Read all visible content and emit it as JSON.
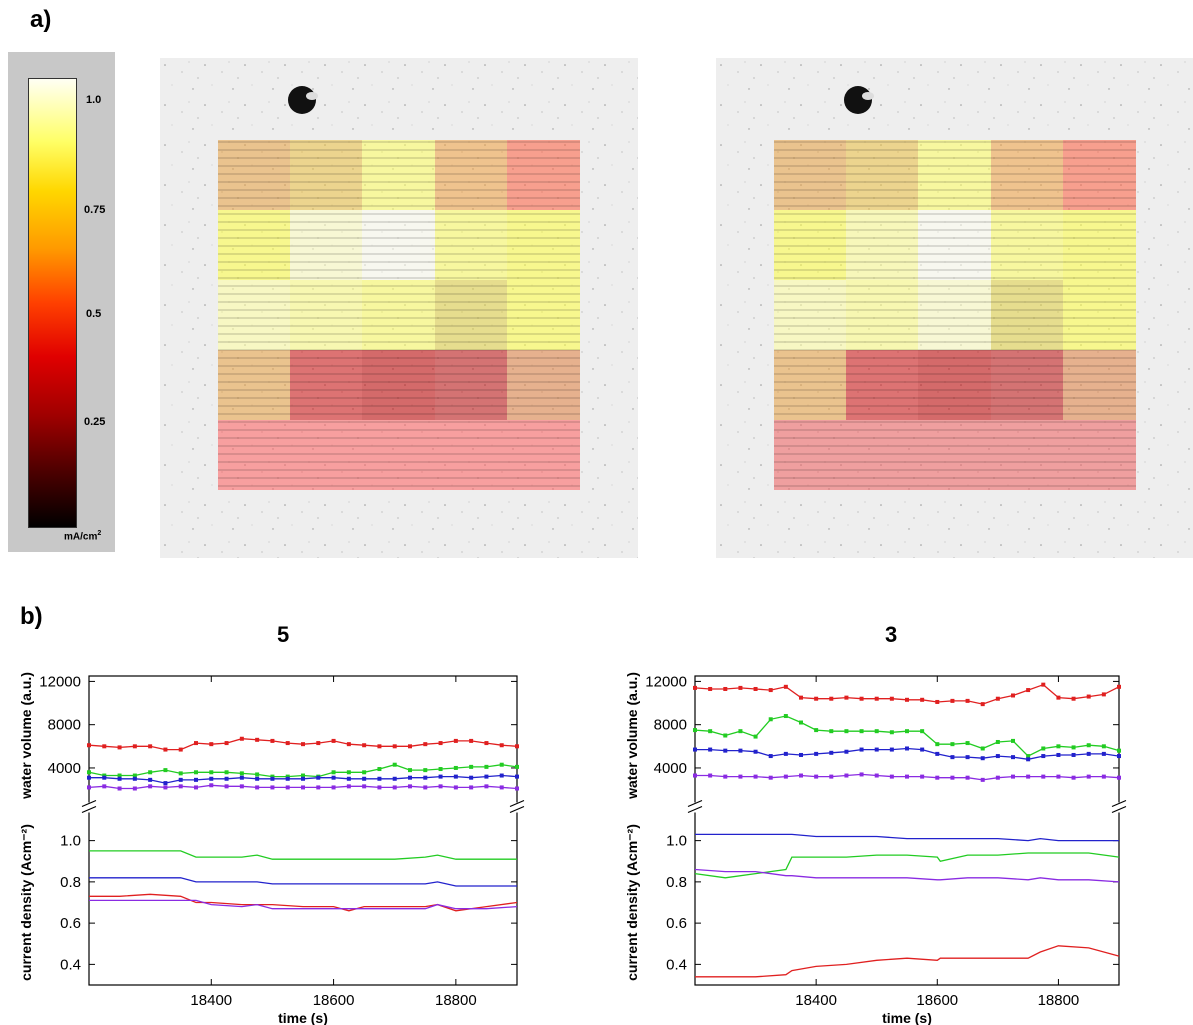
{
  "labels": {
    "a": "a)",
    "b": "b)"
  },
  "colorbar": {
    "ticks": [
      "1.0",
      "0.75",
      "0.5",
      "0.25"
    ],
    "unit": "mA/cm",
    "unit_sup": "2"
  },
  "chart_data": [
    {
      "type": "line",
      "title": "5",
      "xlabel": "time (s)",
      "xlim": [
        18200,
        18900
      ],
      "xticks": [
        "18400",
        "18600",
        "18800"
      ],
      "top_panel": {
        "ylabel": "water volume (a.u.)",
        "ylim": [
          1500,
          12500
        ],
        "yticks": [
          "4000",
          "8000",
          "12000"
        ],
        "x": [
          18200,
          18225,
          18250,
          18275,
          18300,
          18325,
          18350,
          18375,
          18400,
          18425,
          18450,
          18475,
          18500,
          18525,
          18550,
          18575,
          18600,
          18625,
          18650,
          18675,
          18700,
          18725,
          18750,
          18775,
          18800,
          18825,
          18850,
          18875,
          18900
        ],
        "series": [
          {
            "color": "#e02020",
            "values": [
              6100,
              6000,
              5900,
              6000,
              6000,
              5700,
              5700,
              6300,
              6200,
              6300,
              6700,
              6600,
              6500,
              6300,
              6200,
              6300,
              6500,
              6200,
              6100,
              6000,
              6000,
              6000,
              6200,
              6300,
              6500,
              6500,
              6300,
              6100,
              6000
            ]
          },
          {
            "color": "#22cc22",
            "values": [
              3600,
              3300,
              3300,
              3300,
              3600,
              3800,
              3500,
              3600,
              3600,
              3600,
              3500,
              3400,
              3200,
              3200,
              3300,
              3200,
              3600,
              3600,
              3600,
              3900,
              4300,
              3800,
              3800,
              3900,
              4000,
              4100,
              4100,
              4300,
              4100
            ]
          },
          {
            "color": "#2222cc",
            "values": [
              3100,
              3100,
              3000,
              3000,
              2900,
              2600,
              2900,
              2900,
              3000,
              3000,
              3100,
              3000,
              3000,
              3000,
              3000,
              3100,
              3100,
              3000,
              3000,
              3000,
              3000,
              3100,
              3100,
              3200,
              3200,
              3100,
              3200,
              3300,
              3200
            ]
          },
          {
            "color": "#8a2be2",
            "values": [
              2200,
              2300,
              2100,
              2100,
              2300,
              2200,
              2300,
              2200,
              2400,
              2300,
              2300,
              2200,
              2200,
              2200,
              2200,
              2200,
              2200,
              2300,
              2300,
              2200,
              2200,
              2300,
              2200,
              2300,
              2200,
              2200,
              2300,
              2200,
              2100
            ]
          }
        ]
      },
      "bottom_panel": {
        "ylabel": "current density (Acm⁻²)",
        "ylim": [
          0.3,
          1.1
        ],
        "yticks": [
          "0.4",
          "0.6",
          "0.8",
          "1.0"
        ],
        "x": [
          18200,
          18250,
          18300,
          18350,
          18375,
          18400,
          18450,
          18475,
          18500,
          18550,
          18600,
          18625,
          18650,
          18700,
          18750,
          18770,
          18800,
          18850,
          18900
        ],
        "series": [
          {
            "color": "#22cc22",
            "values": [
              0.95,
              0.95,
              0.95,
              0.95,
              0.92,
              0.92,
              0.92,
              0.93,
              0.91,
              0.91,
              0.91,
              0.91,
              0.91,
              0.91,
              0.92,
              0.93,
              0.91,
              0.91,
              0.91
            ]
          },
          {
            "color": "#2222cc",
            "values": [
              0.82,
              0.82,
              0.82,
              0.82,
              0.8,
              0.8,
              0.8,
              0.8,
              0.79,
              0.79,
              0.79,
              0.79,
              0.79,
              0.79,
              0.79,
              0.8,
              0.78,
              0.78,
              0.78
            ]
          },
          {
            "color": "#e02020",
            "values": [
              0.73,
              0.73,
              0.74,
              0.73,
              0.7,
              0.7,
              0.69,
              0.69,
              0.69,
              0.68,
              0.68,
              0.66,
              0.68,
              0.68,
              0.68,
              0.69,
              0.66,
              0.68,
              0.7
            ]
          },
          {
            "color": "#8a2be2",
            "values": [
              0.71,
              0.71,
              0.71,
              0.71,
              0.71,
              0.69,
              0.68,
              0.69,
              0.67,
              0.67,
              0.67,
              0.67,
              0.67,
              0.67,
              0.67,
              0.69,
              0.67,
              0.67,
              0.68
            ]
          }
        ]
      }
    },
    {
      "type": "line",
      "title": "3",
      "xlabel": "time (s)",
      "xlim": [
        18200,
        18900
      ],
      "xticks": [
        "18400",
        "18600",
        "18800"
      ],
      "top_panel": {
        "ylabel": "water volume (a.u.)",
        "ylim": [
          1500,
          12500
        ],
        "yticks": [
          "4000",
          "8000",
          "12000"
        ],
        "x": [
          18200,
          18225,
          18250,
          18275,
          18300,
          18325,
          18350,
          18375,
          18400,
          18425,
          18450,
          18475,
          18500,
          18525,
          18550,
          18575,
          18600,
          18625,
          18650,
          18675,
          18700,
          18725,
          18750,
          18775,
          18800,
          18825,
          18850,
          18875,
          18900
        ],
        "series": [
          {
            "color": "#e02020",
            "values": [
              11400,
              11300,
              11300,
              11400,
              11300,
              11200,
              11500,
              10500,
              10400,
              10400,
              10500,
              10400,
              10400,
              10400,
              10300,
              10300,
              10100,
              10200,
              10200,
              9900,
              10400,
              10700,
              11200,
              11700,
              10500,
              10400,
              10600,
              10800,
              11500
            ]
          },
          {
            "color": "#22cc22",
            "values": [
              7500,
              7400,
              7000,
              7400,
              6900,
              8500,
              8800,
              8200,
              7500,
              7400,
              7400,
              7400,
              7400,
              7300,
              7400,
              7400,
              6200,
              6200,
              6300,
              5800,
              6400,
              6500,
              5100,
              5800,
              6000,
              5900,
              6100,
              6000,
              5600
            ]
          },
          {
            "color": "#2222cc",
            "values": [
              5700,
              5700,
              5600,
              5600,
              5500,
              5100,
              5300,
              5200,
              5300,
              5400,
              5500,
              5700,
              5700,
              5700,
              5800,
              5700,
              5300,
              5000,
              5000,
              4900,
              5100,
              5000,
              4800,
              5100,
              5200,
              5200,
              5300,
              5300,
              5100
            ]
          },
          {
            "color": "#8a2be2",
            "values": [
              3300,
              3300,
              3200,
              3200,
              3200,
              3100,
              3200,
              3300,
              3200,
              3200,
              3300,
              3400,
              3300,
              3200,
              3200,
              3200,
              3100,
              3100,
              3100,
              2900,
              3100,
              3200,
              3200,
              3200,
              3200,
              3100,
              3200,
              3200,
              3100
            ]
          }
        ]
      },
      "bottom_panel": {
        "ylabel": "current density (Acm⁻²)",
        "ylim": [
          0.3,
          1.1
        ],
        "yticks": [
          "0.4",
          "0.6",
          "0.8",
          "1.0"
        ],
        "x": [
          18200,
          18250,
          18300,
          18350,
          18360,
          18400,
          18450,
          18500,
          18550,
          18600,
          18605,
          18650,
          18700,
          18750,
          18770,
          18800,
          18850,
          18900
        ],
        "series": [
          {
            "color": "#2222cc",
            "values": [
              1.03,
              1.03,
              1.03,
              1.03,
              1.03,
              1.02,
              1.02,
              1.02,
              1.01,
              1.01,
              1.01,
              1.01,
              1.01,
              1.0,
              1.01,
              1.0,
              1.0,
              1.0
            ]
          },
          {
            "color": "#22cc22",
            "values": [
              0.84,
              0.82,
              0.84,
              0.86,
              0.92,
              0.92,
              0.92,
              0.93,
              0.93,
              0.92,
              0.9,
              0.93,
              0.93,
              0.94,
              0.94,
              0.94,
              0.94,
              0.92
            ]
          },
          {
            "color": "#8a2be2",
            "values": [
              0.86,
              0.85,
              0.85,
              0.83,
              0.83,
              0.82,
              0.82,
              0.82,
              0.82,
              0.81,
              0.81,
              0.82,
              0.82,
              0.81,
              0.82,
              0.81,
              0.81,
              0.8
            ]
          },
          {
            "color": "#e02020",
            "values": [
              0.34,
              0.34,
              0.34,
              0.35,
              0.37,
              0.39,
              0.4,
              0.42,
              0.43,
              0.42,
              0.43,
              0.43,
              0.43,
              0.43,
              0.46,
              0.49,
              0.48,
              0.44
            ]
          }
        ]
      }
    }
  ]
}
